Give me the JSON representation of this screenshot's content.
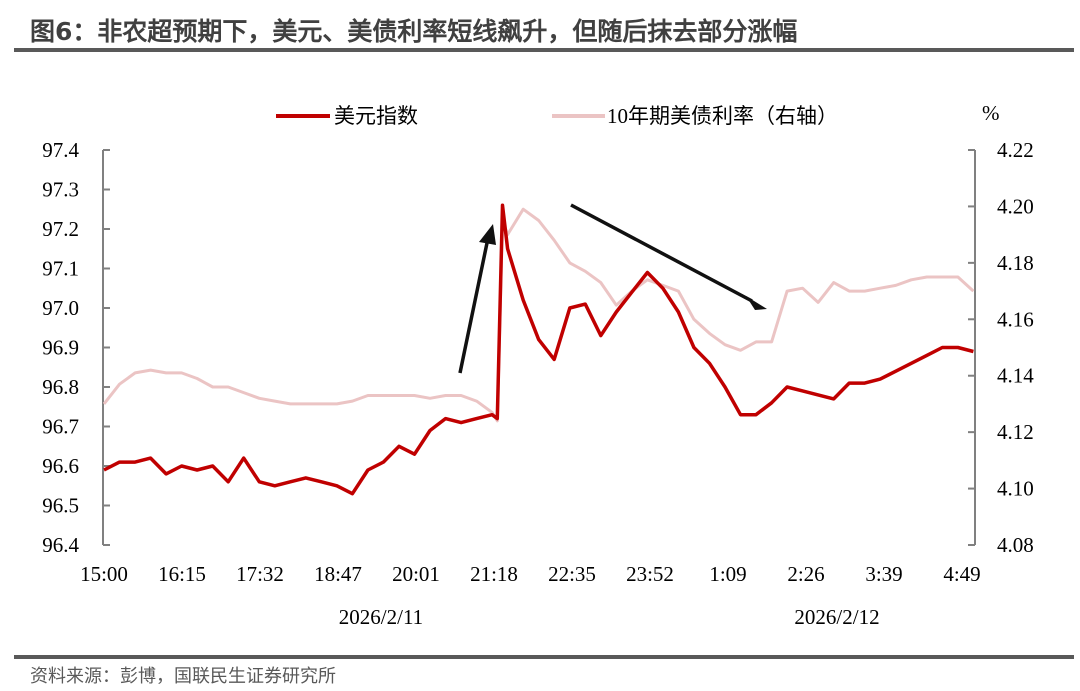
{
  "title": "图6：非农超预期下，美元、美债利率短线飙升，但随后抹去部分涨幅",
  "source": "资料来源：彭博，国联民生证券研究所",
  "chart_data": {
    "type": "line",
    "title": "图6：非农超预期下，美元、美债利率短线飙升，但随后抹去部分涨幅",
    "x_tick_labels": [
      "15:00",
      "16:15",
      "17:32",
      "18:47",
      "20:01",
      "21:18",
      "22:35",
      "23:52",
      "1:09",
      "2:26",
      "3:39",
      "4:49"
    ],
    "x_date_labels": [
      "2026/2/11",
      "2026/2/12"
    ],
    "left_axis": {
      "ylim": [
        96.4,
        97.4
      ],
      "ticks": [
        "96.4",
        "96.5",
        "96.6",
        "96.7",
        "96.8",
        "96.9",
        "97.0",
        "97.1",
        "97.2",
        "97.3",
        "97.4"
      ]
    },
    "right_axis": {
      "unit": "%",
      "ylim": [
        4.08,
        4.22
      ],
      "ticks": [
        "4.08",
        "4.10",
        "4.12",
        "4.14",
        "4.16",
        "4.18",
        "4.20",
        "4.22"
      ]
    },
    "grid": false,
    "legend_placement": "top",
    "x": [
      "15:00",
      "15:15",
      "15:30",
      "15:45",
      "16:00",
      "16:15",
      "16:30",
      "16:45",
      "17:00",
      "17:15",
      "17:30",
      "17:45",
      "18:00",
      "18:15",
      "18:30",
      "18:45",
      "19:00",
      "19:15",
      "19:30",
      "19:45",
      "20:00",
      "20:15",
      "20:30",
      "20:45",
      "21:00",
      "21:15",
      "21:20",
      "21:25",
      "21:30",
      "21:45",
      "22:00",
      "22:15",
      "22:30",
      "22:45",
      "23:00",
      "23:15",
      "23:30",
      "23:45",
      "0:00",
      "0:15",
      "0:30",
      "0:45",
      "1:00",
      "1:15",
      "1:30",
      "1:45",
      "2:00",
      "2:15",
      "2:30",
      "2:45",
      "3:00",
      "3:15",
      "3:30",
      "3:45",
      "4:00",
      "4:15",
      "4:30",
      "4:45",
      "5:00"
    ],
    "series": [
      {
        "name": "美元指数",
        "axis": "left",
        "color": "#C00000",
        "values": [
          96.59,
          96.61,
          96.61,
          96.62,
          96.58,
          96.6,
          96.59,
          96.6,
          96.56,
          96.62,
          96.56,
          96.55,
          96.56,
          96.57,
          96.56,
          96.55,
          96.53,
          96.59,
          96.61,
          96.65,
          96.63,
          96.69,
          96.72,
          96.71,
          96.72,
          96.73,
          96.72,
          97.26,
          97.15,
          97.02,
          96.92,
          96.87,
          97.0,
          97.01,
          96.93,
          96.99,
          97.04,
          97.09,
          97.05,
          96.99,
          96.9,
          96.86,
          96.8,
          96.73,
          96.73,
          96.76,
          96.8,
          96.79,
          96.78,
          96.77,
          96.81,
          96.81,
          96.82,
          96.84,
          96.86,
          96.88,
          96.9,
          96.9,
          96.89
        ]
      },
      {
        "name": "10年期美债利率（右轴）",
        "axis": "right",
        "color": "#EBC4C4",
        "values": [
          4.13,
          4.137,
          4.141,
          4.142,
          4.141,
          4.141,
          4.139,
          4.136,
          4.136,
          4.134,
          4.132,
          4.131,
          4.13,
          4.13,
          4.13,
          4.13,
          4.131,
          4.133,
          4.133,
          4.133,
          4.133,
          4.132,
          4.133,
          4.133,
          4.131,
          4.127,
          4.124,
          4.195,
          4.19,
          4.199,
          4.195,
          4.188,
          4.18,
          4.177,
          4.173,
          4.165,
          4.17,
          4.174,
          4.172,
          4.17,
          4.16,
          4.155,
          4.151,
          4.149,
          4.152,
          4.152,
          4.17,
          4.171,
          4.166,
          4.173,
          4.17,
          4.17,
          4.171,
          4.172,
          4.174,
          4.175,
          4.175,
          4.175,
          4.17
        ]
      }
    ],
    "legend": [
      "美元指数",
      "10年期美债利率（右轴）"
    ]
  }
}
